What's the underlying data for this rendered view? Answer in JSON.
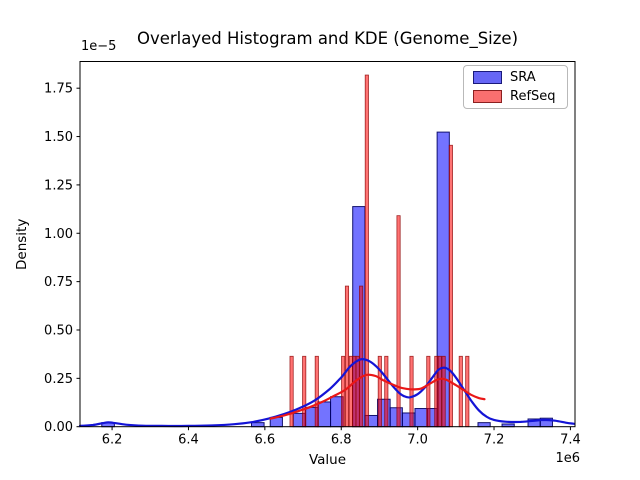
{
  "title": "Overlayed Histogram and KDE (Genome_Size)",
  "axes": {
    "xlabel": "Value",
    "ylabel": "Density",
    "x_offset_text": "1e6",
    "y_offset_text": "1e−5",
    "xlim": [
      6.116,
      7.412
    ],
    "ylim": [
      0,
      1.888
    ],
    "x_ticks": {
      "values": [
        6.2,
        6.4,
        6.6,
        6.8,
        7.0,
        7.2,
        7.4
      ],
      "labels": [
        "6.2",
        "6.4",
        "6.6",
        "6.8",
        "7.0",
        "7.2",
        "7.4"
      ]
    },
    "y_ticks": {
      "values": [
        0,
        0.25,
        0.5,
        0.75,
        1.0,
        1.25,
        1.5,
        1.75
      ],
      "labels": [
        "0.00",
        "0.25",
        "0.50",
        "0.75",
        "1.00",
        "1.25",
        "1.50",
        "1.75"
      ]
    },
    "frame_color": "#000000",
    "background": "#ffffff"
  },
  "legend": {
    "items": [
      {
        "label": "SRA",
        "fill": "#6666f5",
        "edge": "#1a1a7a"
      },
      {
        "label": "RefSeq",
        "fill": "#f96f6f",
        "edge": "#8b2020"
      }
    ]
  },
  "chart_data": {
    "type": "bar",
    "subtype": "overlaid-histogram-with-kde",
    "title": "Overlayed Histogram and KDE (Genome_Size)",
    "xlabel": "Value",
    "ylabel": "Density",
    "x_scale_factor": "1e6",
    "y_scale_factor": "1e-5",
    "series": [
      {
        "name": "SRA",
        "kind": "histogram",
        "fill": "#0000ff",
        "fill_opacity": 0.55,
        "edge": "#000060",
        "edge_opacity": 0.9,
        "bars": [
          [
            6.173,
            6.206,
            0.021
          ],
          [
            6.565,
            6.598,
            0.021
          ],
          [
            6.614,
            6.646,
            0.048
          ],
          [
            6.674,
            6.706,
            0.069
          ],
          [
            6.706,
            6.739,
            0.1
          ],
          [
            6.739,
            6.772,
            0.128
          ],
          [
            6.772,
            6.805,
            0.155
          ],
          [
            6.83,
            6.862,
            1.138
          ],
          [
            6.862,
            6.895,
            0.058
          ],
          [
            6.895,
            6.928,
            0.142
          ],
          [
            6.928,
            6.96,
            0.098
          ],
          [
            6.96,
            6.993,
            0.071
          ],
          [
            6.993,
            7.026,
            0.094
          ],
          [
            7.026,
            7.051,
            0.094
          ],
          [
            7.051,
            7.083,
            1.523
          ],
          [
            7.158,
            7.19,
            0.021
          ],
          [
            7.221,
            7.253,
            0.014
          ],
          [
            7.289,
            7.321,
            0.04
          ],
          [
            7.321,
            7.353,
            0.044
          ]
        ]
      },
      {
        "name": "RefSeq",
        "kind": "histogram",
        "fill": "#ff0000",
        "fill_opacity": 0.55,
        "edge": "#8b0000",
        "edge_opacity": 0.8,
        "bar_width": 0.0086,
        "bars_center_height": [
          [
            6.67,
            0.364
          ],
          [
            6.703,
            0.364
          ],
          [
            6.736,
            0.364
          ],
          [
            6.805,
            0.364
          ],
          [
            6.815,
            0.727
          ],
          [
            6.825,
            0.364
          ],
          [
            6.834,
            0.364
          ],
          [
            6.843,
            0.364
          ],
          [
            6.852,
            0.727
          ],
          [
            6.867,
            1.818
          ],
          [
            6.901,
            0.364
          ],
          [
            6.918,
            0.364
          ],
          [
            6.95,
            1.091
          ],
          [
            6.984,
            0.364
          ],
          [
            7.028,
            0.364
          ],
          [
            7.049,
            0.364
          ],
          [
            7.058,
            0.364
          ],
          [
            7.068,
            0.364
          ],
          [
            7.087,
            1.455
          ],
          [
            7.113,
            0.364
          ],
          [
            7.13,
            0.364
          ]
        ]
      },
      {
        "name": "SRA KDE",
        "kind": "line",
        "color": "#1414d6",
        "points": [
          [
            6.116,
            0.004
          ],
          [
            6.15,
            0.009
          ],
          [
            6.175,
            0.018
          ],
          [
            6.19,
            0.022
          ],
          [
            6.21,
            0.018
          ],
          [
            6.24,
            0.01
          ],
          [
            6.28,
            0.005
          ],
          [
            6.33,
            0.004
          ],
          [
            6.4,
            0.004
          ],
          [
            6.46,
            0.006
          ],
          [
            6.52,
            0.013
          ],
          [
            6.57,
            0.025
          ],
          [
            6.61,
            0.042
          ],
          [
            6.65,
            0.065
          ],
          [
            6.69,
            0.095
          ],
          [
            6.73,
            0.135
          ],
          [
            6.77,
            0.195
          ],
          [
            6.8,
            0.255
          ],
          [
            6.825,
            0.315
          ],
          [
            6.85,
            0.348
          ],
          [
            6.87,
            0.342
          ],
          [
            6.89,
            0.315
          ],
          [
            6.91,
            0.272
          ],
          [
            6.93,
            0.222
          ],
          [
            6.95,
            0.178
          ],
          [
            6.965,
            0.157
          ],
          [
            6.98,
            0.152
          ],
          [
            7.0,
            0.168
          ],
          [
            7.02,
            0.205
          ],
          [
            7.04,
            0.258
          ],
          [
            7.055,
            0.295
          ],
          [
            7.07,
            0.305
          ],
          [
            7.085,
            0.29
          ],
          [
            7.1,
            0.255
          ],
          [
            7.12,
            0.195
          ],
          [
            7.14,
            0.135
          ],
          [
            7.16,
            0.085
          ],
          [
            7.18,
            0.052
          ],
          [
            7.2,
            0.035
          ],
          [
            7.23,
            0.026
          ],
          [
            7.27,
            0.025
          ],
          [
            7.3,
            0.03
          ],
          [
            7.33,
            0.035
          ],
          [
            7.36,
            0.031
          ],
          [
            7.39,
            0.02
          ],
          [
            7.41,
            0.015
          ]
        ]
      },
      {
        "name": "RefSeq KDE",
        "kind": "line",
        "color": "#ea1717",
        "points": [
          [
            6.615,
            0.042
          ],
          [
            6.65,
            0.058
          ],
          [
            6.69,
            0.082
          ],
          [
            6.72,
            0.103
          ],
          [
            6.75,
            0.128
          ],
          [
            6.78,
            0.158
          ],
          [
            6.81,
            0.19
          ],
          [
            6.84,
            0.24
          ],
          [
            6.865,
            0.268
          ],
          [
            6.89,
            0.262
          ],
          [
            6.91,
            0.24
          ],
          [
            6.93,
            0.222
          ],
          [
            6.95,
            0.205
          ],
          [
            6.97,
            0.196
          ],
          [
            6.99,
            0.193
          ],
          [
            7.01,
            0.198
          ],
          [
            7.03,
            0.22
          ],
          [
            7.05,
            0.242
          ],
          [
            7.065,
            0.248
          ],
          [
            7.08,
            0.238
          ],
          [
            7.1,
            0.215
          ],
          [
            7.12,
            0.19
          ],
          [
            7.14,
            0.165
          ],
          [
            7.16,
            0.148
          ],
          [
            7.175,
            0.142
          ]
        ]
      }
    ]
  }
}
